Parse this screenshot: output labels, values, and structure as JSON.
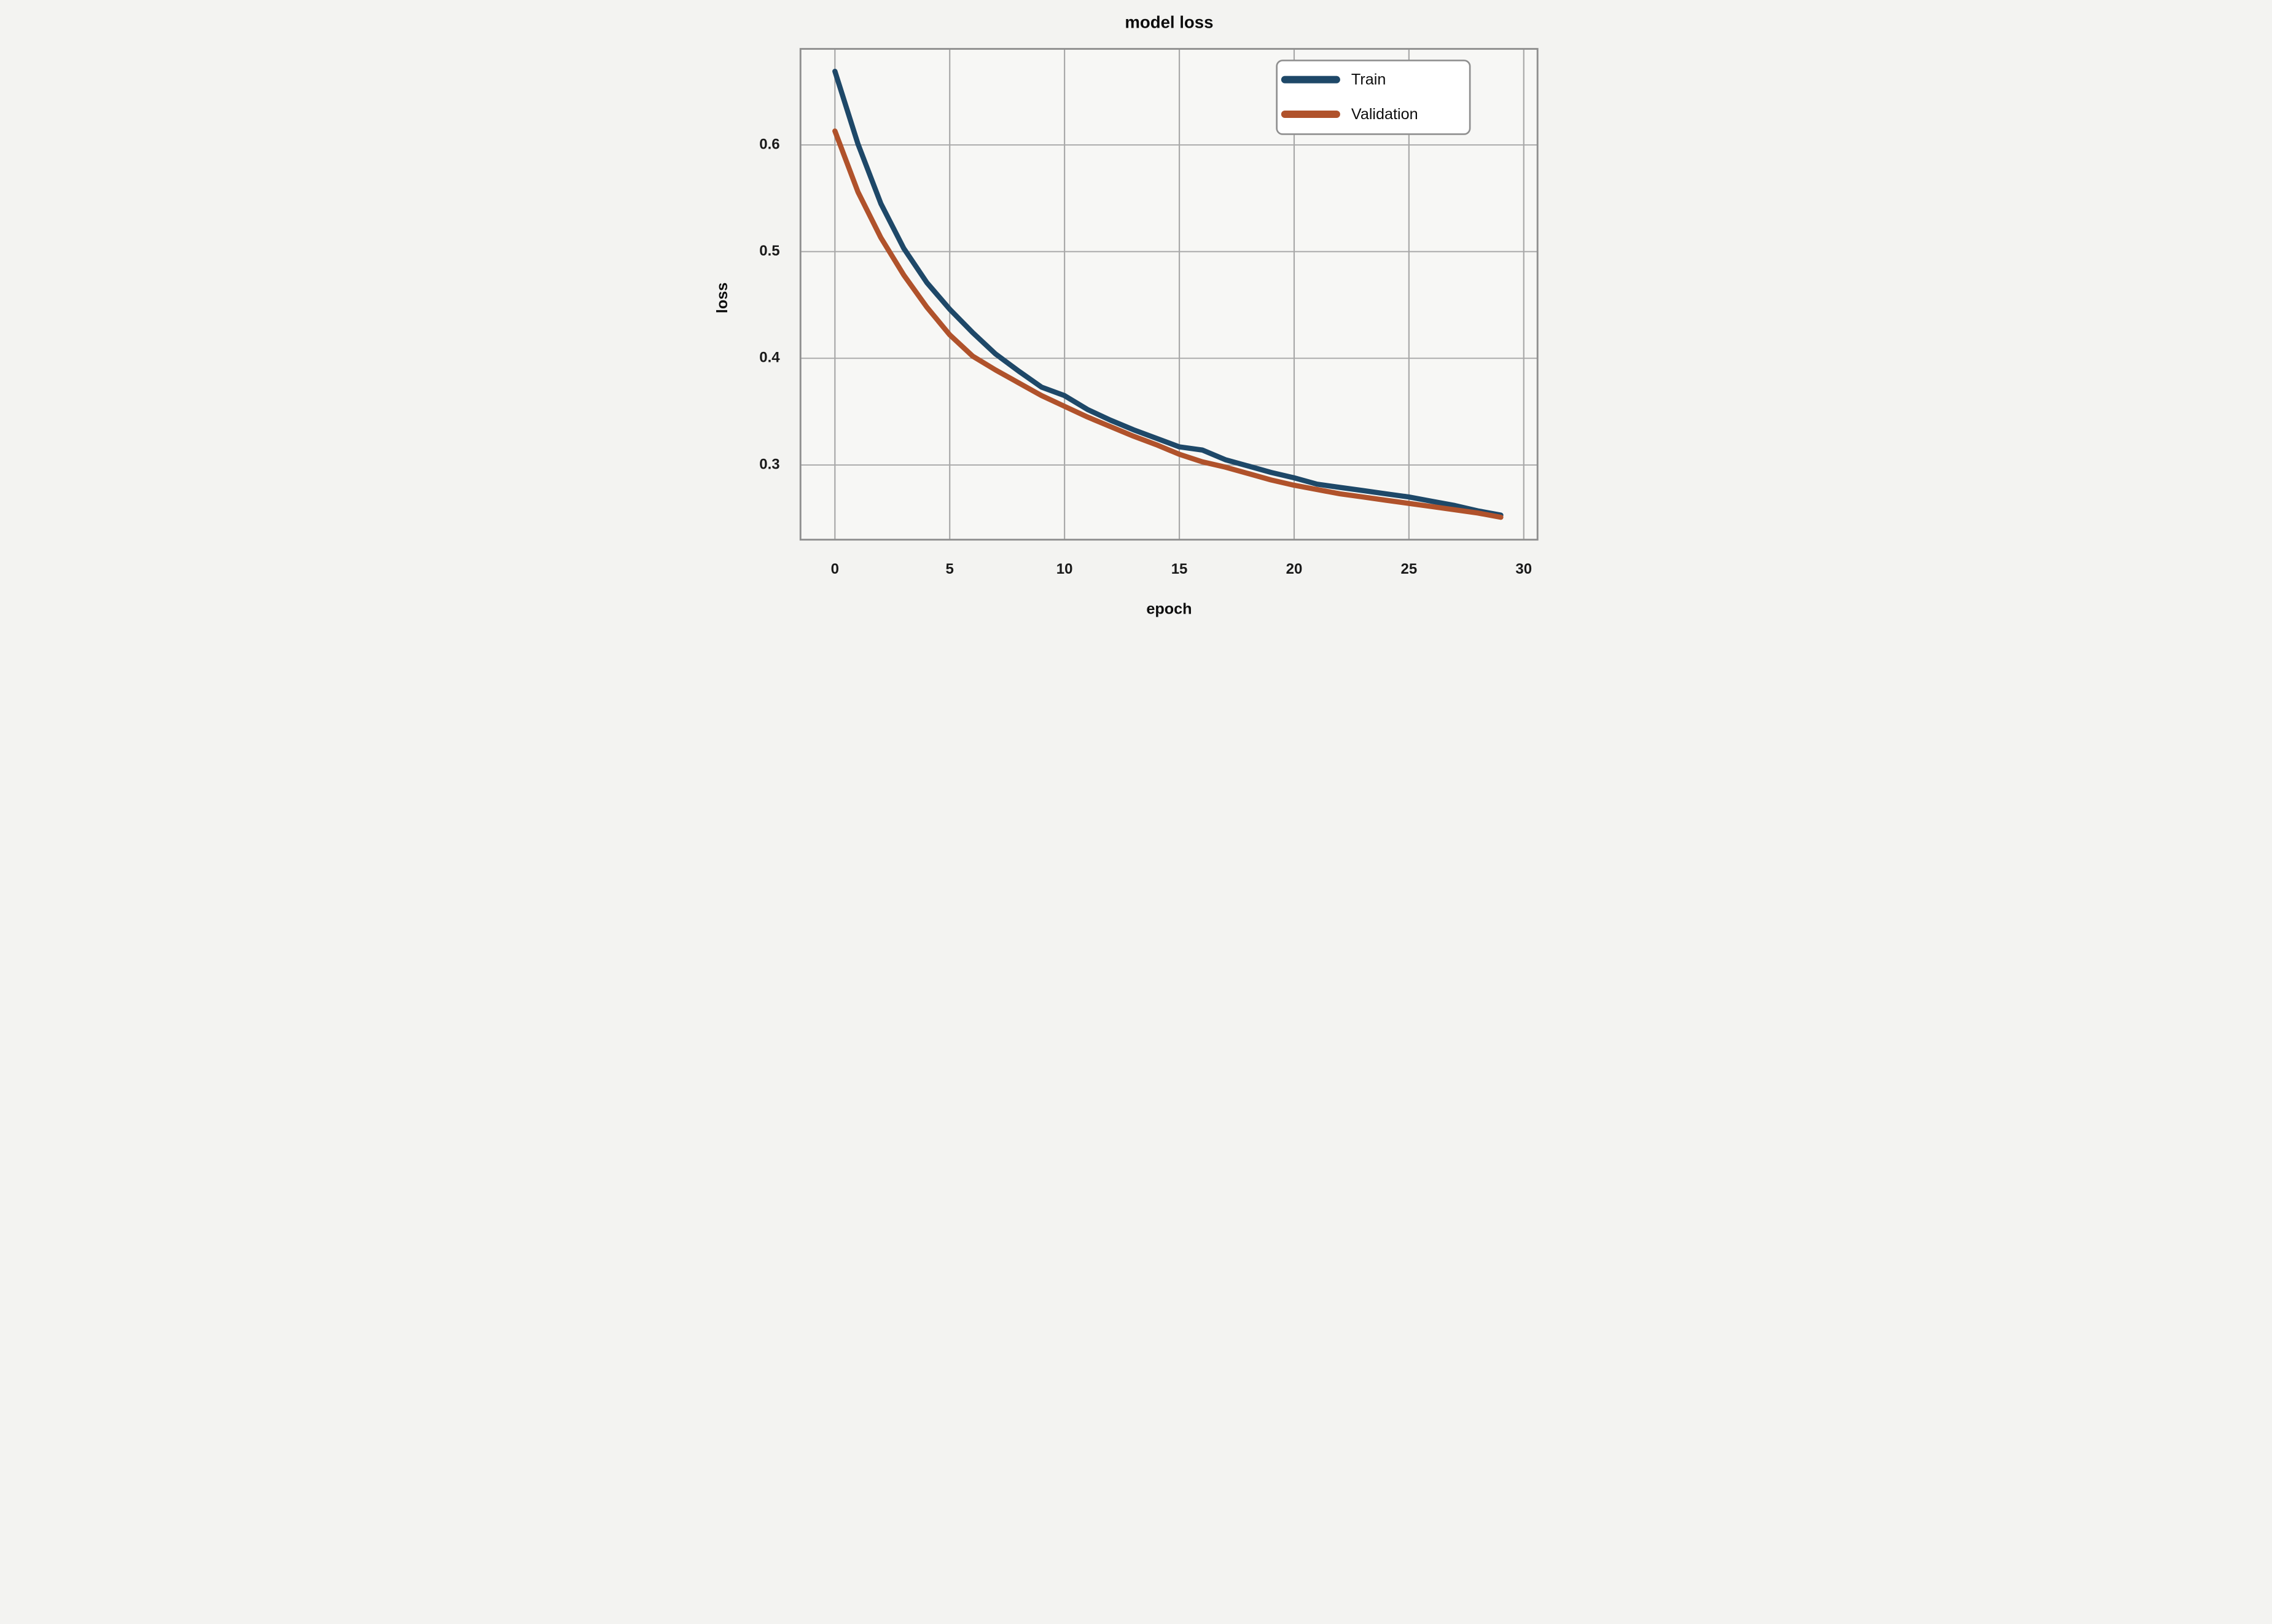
{
  "figure": {
    "background": "#f3f3f1",
    "plot_background": "#f7f7f5",
    "border_color": "#8f8f8f",
    "grid_color": "#a8a8a8"
  },
  "chart_data": {
    "type": "line",
    "title": "model loss",
    "xlabel": "epoch",
    "ylabel": "loss",
    "grid": true,
    "legend_position": "upper right",
    "legend_entries": [
      "Train",
      "Validation"
    ],
    "xlim": [
      -1.5,
      30.6
    ],
    "ylim": [
      0.23,
      0.69
    ],
    "xticks": [
      0,
      5,
      10,
      15,
      20,
      25,
      30
    ],
    "yticks": [
      0.3,
      0.4,
      0.5,
      0.6
    ],
    "x": [
      0,
      1,
      2,
      3,
      4,
      5,
      6,
      7,
      8,
      9,
      10,
      11,
      12,
      13,
      14,
      15,
      16,
      17,
      18,
      19,
      20,
      21,
      22,
      23,
      24,
      25,
      26,
      27,
      28,
      29
    ],
    "series": [
      {
        "name": "Train",
        "color": "#1e4868",
        "values": [
          0.669,
          0.601,
          0.545,
          0.503,
          0.471,
          0.446,
          0.424,
          0.404,
          0.388,
          0.373,
          0.365,
          0.352,
          0.342,
          0.333,
          0.325,
          0.317,
          0.314,
          0.305,
          0.299,
          0.293,
          0.288,
          0.282,
          0.279,
          0.276,
          0.273,
          0.27,
          0.266,
          0.262,
          0.257,
          0.253
        ]
      },
      {
        "name": "Validation",
        "color": "#b0522b",
        "values": [
          0.613,
          0.556,
          0.513,
          0.478,
          0.448,
          0.422,
          0.402,
          0.389,
          0.377,
          0.365,
          0.355,
          0.345,
          0.336,
          0.327,
          0.319,
          0.31,
          0.303,
          0.298,
          0.292,
          0.286,
          0.281,
          0.277,
          0.273,
          0.27,
          0.267,
          0.264,
          0.261,
          0.258,
          0.255,
          0.251
        ]
      }
    ]
  }
}
